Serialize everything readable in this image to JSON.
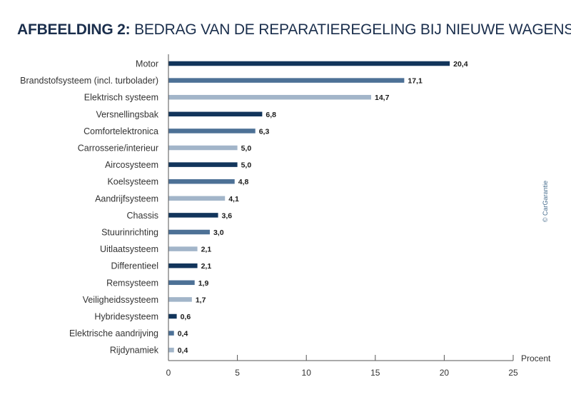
{
  "title_prefix": "AFBEELDING 2:",
  "title_rest": "BEDRAG VAN DE REPARATIEREGELING BIJ NIEUWE WAGENS",
  "copyright": "© CarGarantie",
  "colors": {
    "title": "#1a2e4c",
    "bar_dark": "#12355b",
    "bar_mid": "#4d7196",
    "bar_light": "#a2b5c9",
    "axis": "#555555"
  },
  "chart_data": {
    "type": "bar",
    "orientation": "horizontal",
    "title": "AFBEELDING 2: BEDRAG VAN DE REPARATIEREGELING BIJ NIEUWE WAGENS",
    "categories": [
      "Motor",
      "Brandstofsysteem (incl. turbolader)",
      "Elektrisch systeem",
      "Versnellingsbak",
      "Comfortelektronica",
      "Carrosserie/interieur",
      "Aircosysteem",
      "Koelsysteem",
      "Aandrijfsysteem",
      "Chassis",
      "Stuurinrichting",
      "Uitlaatsysteem",
      "Differentieel",
      "Remsysteem",
      "Veiligheidssysteem",
      "Hybridesysteem",
      "Elektrische aandrijving",
      "Rijdynamiek"
    ],
    "values": [
      20.4,
      17.1,
      14.7,
      6.8,
      6.3,
      5.0,
      5.0,
      4.8,
      4.1,
      3.6,
      3.0,
      2.1,
      2.1,
      1.9,
      1.7,
      0.6,
      0.4,
      0.4
    ],
    "value_labels": [
      "20,4",
      "17,1",
      "14,7",
      "6,8",
      "6,3",
      "5,0",
      "5,0",
      "4,8",
      "4,1",
      "3,6",
      "3,0",
      "2,1",
      "2,1",
      "1,9",
      "1,7",
      "0,6",
      "0,4",
      "0,4"
    ],
    "xlabel": "Procent",
    "ylabel": "",
    "xlim": [
      0,
      25
    ],
    "xticks": [
      0,
      5,
      10,
      15,
      20,
      25
    ],
    "xtick_labels": [
      "0",
      "5",
      "10",
      "15",
      "20",
      "25"
    ],
    "grid": false,
    "legend": "none",
    "bar_color_cycle": [
      "dark",
      "mid",
      "light"
    ]
  }
}
